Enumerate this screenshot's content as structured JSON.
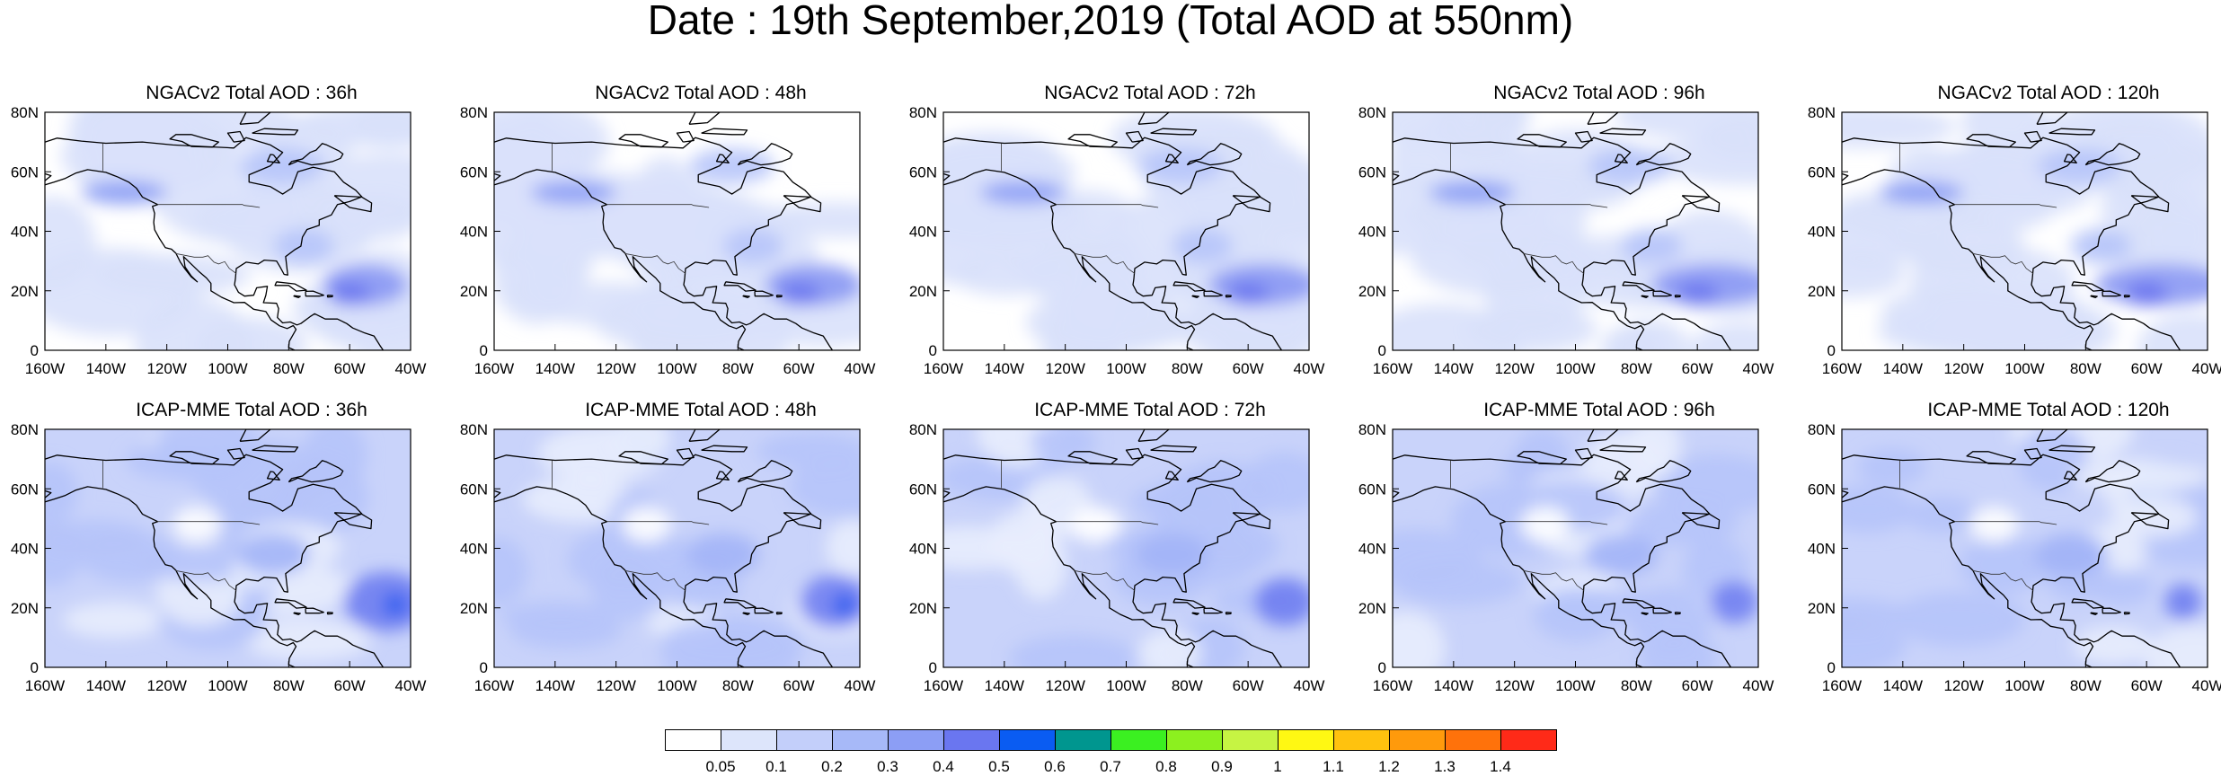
{
  "title": "Date : 19th September,2019 (Total AOD at 550nm)",
  "panels": [
    {
      "title": "NGACv2 Total AOD : 36h",
      "model": "NGACv2",
      "hours": 36
    },
    {
      "title": "NGACv2 Total AOD : 48h",
      "model": "NGACv2",
      "hours": 48
    },
    {
      "title": "NGACv2 Total AOD : 72h",
      "model": "NGACv2",
      "hours": 72
    },
    {
      "title": "NGACv2 Total AOD : 96h",
      "model": "NGACv2",
      "hours": 96
    },
    {
      "title": "NGACv2 Total AOD : 120h",
      "model": "NGACv2",
      "hours": 120
    },
    {
      "title": "ICAP-MME Total AOD : 36h",
      "model": "ICAP-MME",
      "hours": 36
    },
    {
      "title": "ICAP-MME Total AOD : 48h",
      "model": "ICAP-MME",
      "hours": 48
    },
    {
      "title": "ICAP-MME Total AOD : 72h",
      "model": "ICAP-MME",
      "hours": 72
    },
    {
      "title": "ICAP-MME Total AOD : 96h",
      "model": "ICAP-MME",
      "hours": 96
    },
    {
      "title": "ICAP-MME Total AOD : 120h",
      "model": "ICAP-MME",
      "hours": 120
    }
  ],
  "lon_ticks": [
    "160W",
    "140W",
    "120W",
    "100W",
    "80W",
    "60W",
    "40W"
  ],
  "lat_ticks": [
    "80N",
    "60N",
    "40N",
    "20N",
    "0"
  ],
  "map_extent": {
    "lon_min": -160,
    "lon_max": -40,
    "lat_min": 0,
    "lat_max": 80
  },
  "colorbar": {
    "labels": [
      "0.05",
      "0.1",
      "0.2",
      "0.3",
      "0.4",
      "0.5",
      "0.6",
      "0.7",
      "0.8",
      "0.9",
      "1",
      "1.1",
      "1.2",
      "1.3",
      "1.4"
    ],
    "colors": [
      "#ffffff",
      "#dde5fb",
      "#c3cffa",
      "#a7b9f8",
      "#8c9ef5",
      "#6a76f0",
      "#0a5cf2",
      "#00968f",
      "#3bf021",
      "#8cf01f",
      "#c6f443",
      "#fff813",
      "#ffc20e",
      "#ff9a0c",
      "#ff720b",
      "#ff2a18"
    ]
  }
}
